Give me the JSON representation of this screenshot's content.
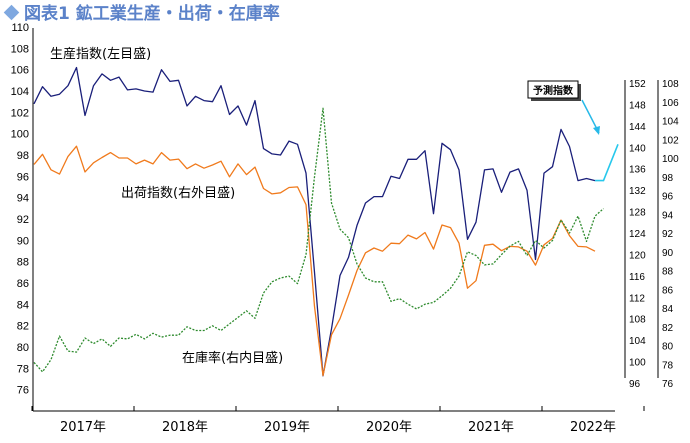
{
  "title": "図表1 鉱工業生産・出荷・在庫率",
  "chart_data": {
    "type": "line",
    "x_labels": [
      "2017年",
      "2018年",
      "2019年",
      "2020年",
      "2021年",
      "2022年"
    ],
    "axes": {
      "left": {
        "min": 74,
        "max": 110,
        "ticks": [
          76,
          78,
          80,
          82,
          84,
          86,
          88,
          90,
          92,
          94,
          96,
          98,
          100,
          102,
          104,
          106,
          108,
          110
        ]
      },
      "outer_right": {
        "min": 96,
        "max": 152,
        "ticks": [
          96,
          100,
          104,
          108,
          112,
          116,
          120,
          124,
          128,
          132,
          136,
          140,
          144,
          148,
          152
        ]
      },
      "inner_right": {
        "min": 76,
        "max": 108,
        "ticks": [
          76,
          78,
          80,
          82,
          84,
          86,
          88,
          90,
          92,
          94,
          96,
          98,
          100,
          102,
          104,
          106,
          108
        ]
      }
    },
    "series": [
      {
        "name": "生産指数(左目盛)",
        "color": "#1a1f7a",
        "axis": "left",
        "values": [
          102.8,
          104.4,
          103.5,
          103.7,
          104.5,
          106.2,
          101.7,
          104.5,
          105.6,
          105.0,
          105.3,
          104.1,
          104.2,
          104.0,
          103.9,
          106.0,
          104.9,
          105.0,
          102.6,
          103.5,
          103.1,
          103.0,
          104.5,
          101.8,
          102.6,
          100.8,
          103.1,
          98.6,
          98.1,
          98.0,
          99.3,
          99.0,
          96.3,
          87.0,
          77.3,
          81.7,
          86.7,
          88.4,
          91.4,
          93.5,
          94.1,
          94.1,
          96.0,
          95.8,
          97.6,
          97.6,
          98.4,
          92.5,
          99.1,
          98.5,
          96.6,
          90.1,
          91.7,
          96.6,
          96.7,
          94.5,
          96.4,
          96.7,
          94.7,
          88.2,
          96.3,
          96.9,
          100.4,
          98.8,
          95.6,
          95.8,
          95.6
        ],
        "forecast": [
          95.6,
          95.6,
          99.0
        ]
      },
      {
        "name": "出荷指数(右外目盛)",
        "color": "#f07a1c",
        "axis": "outer_right",
        "values": [
          136.8,
          138.7,
          135.8,
          135.0,
          138.3,
          140.2,
          135.4,
          137.1,
          138.1,
          139.0,
          138.0,
          138.0,
          136.9,
          137.6,
          136.9,
          139.0,
          137.6,
          137.8,
          136.0,
          136.9,
          136.1,
          136.7,
          137.4,
          134.5,
          136.9,
          134.9,
          136.3,
          132.3,
          131.3,
          131.5,
          132.5,
          132.6,
          129.3,
          110.3,
          97.4,
          105.0,
          108.0,
          112.4,
          117.0,
          120.3,
          121.2,
          120.6,
          122.1,
          122.0,
          123.6,
          122.9,
          124.1,
          121.0,
          125.5,
          125.0,
          122.1,
          113.7,
          115.1,
          121.7,
          121.9,
          120.7,
          121.5,
          121.4,
          120.6,
          118.0,
          121.8,
          123.0,
          126.4,
          123.5,
          121.5,
          121.4,
          120.6
        ]
      },
      {
        "name": "在庫率(右内目盛)",
        "color": "#2e8b2e",
        "axis": "inner_right",
        "values": [
          78.2,
          77.2,
          78.5,
          81.0,
          79.4,
          79.3,
          80.8,
          80.2,
          80.7,
          79.9,
          80.8,
          80.7,
          81.2,
          80.7,
          81.3,
          80.9,
          81.1,
          81.1,
          82.0,
          81.6,
          81.6,
          82.1,
          81.6,
          82.3,
          83.0,
          83.7,
          82.9,
          85.6,
          86.8,
          87.2,
          87.4,
          86.6,
          89.7,
          98.0,
          105.3,
          95.2,
          92.4,
          91.5,
          88.7,
          87.2,
          86.8,
          86.8,
          84.7,
          85.0,
          84.4,
          83.9,
          84.4,
          84.6,
          85.3,
          86.1,
          87.4,
          90.0,
          89.6,
          88.6,
          88.7,
          89.7,
          90.6,
          91.1,
          89.6,
          91.2,
          90.4,
          91.2,
          93.4,
          92.0,
          93.8,
          91.1,
          93.8,
          94.6
        ]
      }
    ],
    "annotations": {
      "production": "生産指数(左目盛)",
      "shipment": "出荷指数(右外目盛)",
      "inventory": "在庫率(右内目盛)",
      "forecast_callout": "予測指数"
    },
    "grid": false,
    "legend": "inline-labels"
  }
}
